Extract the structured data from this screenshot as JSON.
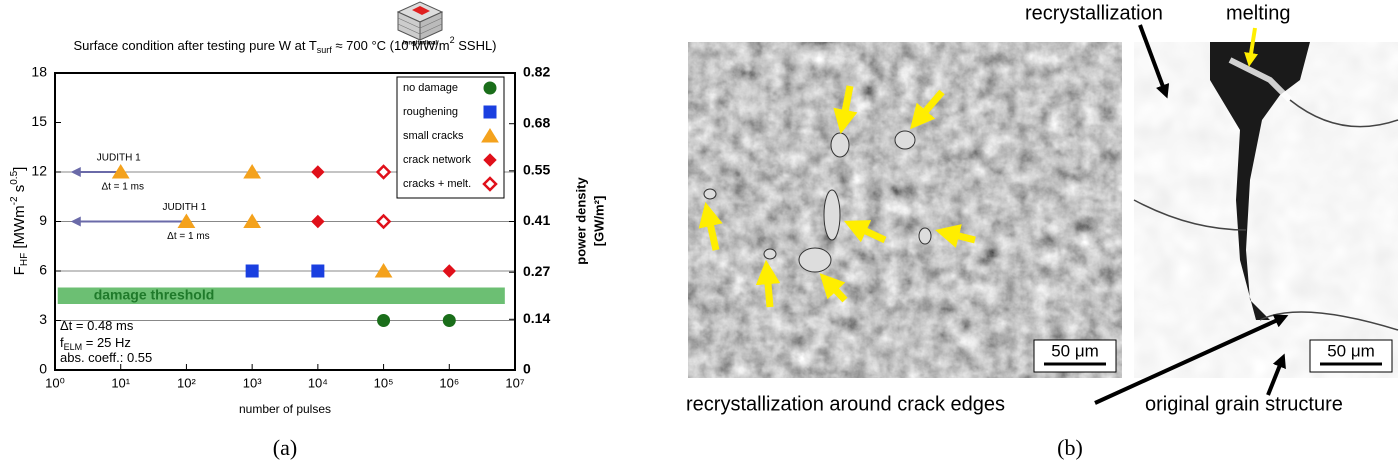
{
  "chart_data": {
    "type": "scatter",
    "title": [
      "Surface condition after testing pure W at T",
      "surf",
      " ≈ 700 °C (10 MW/m",
      "2",
      " SSHL)"
    ],
    "icon_label": "longitudinal",
    "xlabel": "number of pulses",
    "ylabel": [
      "F",
      "HF",
      " [MWm",
      "-2",
      " s",
      "0.5",
      "]"
    ],
    "y2label": [
      "power density",
      "[GW/m²]"
    ],
    "xlog": true,
    "xlim": [
      1,
      10000000
    ],
    "xticks": [
      {
        "value": 1,
        "label": "10⁰"
      },
      {
        "value": 10,
        "label": "10¹"
      },
      {
        "value": 100,
        "label": "10²"
      },
      {
        "value": 1000,
        "label": "10³"
      },
      {
        "value": 10000,
        "label": "10⁴"
      },
      {
        "value": 100000,
        "label": "10⁵"
      },
      {
        "value": 1000000,
        "label": "10⁶"
      },
      {
        "value": 10000000,
        "label": "10⁷"
      }
    ],
    "ylim": [
      0,
      18
    ],
    "yticks": [
      0,
      3,
      6,
      9,
      12,
      15,
      18
    ],
    "y2lim": [
      0,
      0.82
    ],
    "y2ticks": [
      0,
      0.14,
      0.27,
      0.41,
      0.55,
      0.68,
      0.82
    ],
    "hlines": [
      3,
      6,
      9,
      12
    ],
    "band": {
      "label": "damage threshold",
      "x": [
        1.1,
        7000000
      ],
      "y": [
        4,
        5
      ],
      "color": "#6cbf73"
    },
    "annotations": [
      {
        "text": "JUDITH 1",
        "sub": "Δt = 1 ms",
        "x_from": 10,
        "x_to": 1.8,
        "y": 12
      },
      {
        "text": "JUDITH 1",
        "sub": "Δt = 1 ms",
        "x_from": 100,
        "x_to": 1.8,
        "y": 9
      }
    ],
    "notes": [
      [
        "Δt = 0.48 ms"
      ],
      [
        "f",
        "ELM",
        " = 25 Hz"
      ],
      [
        "abs. coeff.: 0.55"
      ]
    ],
    "series": [
      {
        "name": "no damage",
        "color": "#1a6e1a",
        "marker": "circle",
        "filled": true,
        "x": [
          100000,
          1000000
        ],
        "values": [
          3,
          3
        ]
      },
      {
        "name": "roughening",
        "color": "#1a3fe0",
        "marker": "square",
        "filled": true,
        "x": [
          1000,
          10000
        ],
        "values": [
          6,
          6
        ]
      },
      {
        "name": "small cracks",
        "color": "#f4a21d",
        "marker": "triangle",
        "filled": true,
        "x": [
          10,
          1000,
          100,
          1000,
          100000
        ],
        "values": [
          12,
          12,
          9,
          9,
          6
        ]
      },
      {
        "name": "crack network",
        "color": "#e0101a",
        "marker": "diamond",
        "filled": true,
        "x": [
          10000,
          10000,
          1000000
        ],
        "values": [
          12,
          9,
          6
        ]
      },
      {
        "name": "cracks + melt.",
        "color": "#e0101a",
        "marker": "diamond",
        "filled": false,
        "x": [
          100000,
          100000
        ],
        "values": [
          12,
          9
        ]
      }
    ]
  },
  "panel_b": {
    "labels": [
      "recrystallization",
      "melting",
      "recrystallization around crack edges",
      "original grain structure"
    ],
    "scale_bars": [
      "50 μm",
      "50 μm"
    ]
  },
  "captions": [
    "(a)",
    "(b)"
  ]
}
